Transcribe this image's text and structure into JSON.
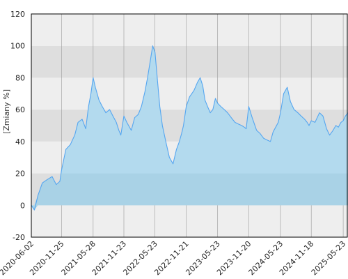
{
  "chart_data": {
    "type": "area",
    "title": "",
    "xlabel": "",
    "ylabel": "[Zmiany %]",
    "ylim": [
      -20,
      120
    ],
    "yticks": [
      -20,
      0,
      20,
      40,
      60,
      80,
      100,
      120
    ],
    "xlim": [
      "2020-06-02",
      "2025-06-20"
    ],
    "xticks": [
      "2020-06-02",
      "2020-11-25",
      "2021-05-28",
      "2021-11-23",
      "2022-05-23",
      "2022-11-21",
      "2023-05-23",
      "2023-11-20",
      "2024-05-23",
      "2024-11-18",
      "2025-05-23"
    ],
    "grid": true,
    "legend": "none",
    "colors": {
      "line": "#55a6f0",
      "fill_positive": "#b3daee",
      "fill_zero_band": "#a9d2e6",
      "band_light": "#eeeeee",
      "band_dark": "#dedede",
      "frame": "#000000",
      "gridline": "#9a9a9a"
    },
    "series": [
      {
        "x": [
          "2020-06-02",
          "2020-06-20",
          "2020-07-10",
          "2020-08-05",
          "2020-09-01",
          "2020-10-01",
          "2020-10-25",
          "2020-11-15",
          "2020-11-25",
          "2020-12-20",
          "2021-01-15",
          "2021-02-10",
          "2021-03-01",
          "2021-03-25",
          "2021-04-15",
          "2021-05-01",
          "2021-05-15",
          "2021-05-28",
          "2021-06-10",
          "2021-07-01",
          "2021-07-20",
          "2021-08-10",
          "2021-09-01",
          "2021-09-20",
          "2021-10-10",
          "2021-10-25",
          "2021-11-05",
          "2021-11-23",
          "2021-12-10",
          "2022-01-05",
          "2022-01-25",
          "2022-02-15",
          "2022-03-05",
          "2022-03-25",
          "2022-04-10",
          "2022-04-25",
          "2022-05-10",
          "2022-05-23",
          "2022-06-05",
          "2022-06-20",
          "2022-07-05",
          "2022-07-25",
          "2022-08-15",
          "2022-09-05",
          "2022-09-25",
          "2022-10-12",
          "2022-10-25",
          "2022-11-05",
          "2022-11-21",
          "2022-12-10",
          "2023-01-05",
          "2023-01-25",
          "2023-02-10",
          "2023-02-25",
          "2023-03-10",
          "2023-03-25",
          "2023-04-10",
          "2023-04-25",
          "2023-05-10",
          "2023-05-23",
          "2023-06-10",
          "2023-07-01",
          "2023-07-20",
          "2023-08-10",
          "2023-09-01",
          "2023-09-20",
          "2023-10-10",
          "2023-10-25",
          "2023-11-05",
          "2023-11-20",
          "2023-12-10",
          "2024-01-05",
          "2024-01-25",
          "2024-02-15",
          "2024-03-05",
          "2024-03-25",
          "2024-04-10",
          "2024-04-25",
          "2024-05-10",
          "2024-05-23",
          "2024-06-10",
          "2024-07-01",
          "2024-07-20",
          "2024-08-10",
          "2024-09-01",
          "2024-09-20",
          "2024-10-10",
          "2024-10-25",
          "2024-11-05",
          "2024-11-18",
          "2024-12-10",
          "2025-01-05",
          "2025-01-25",
          "2025-02-15",
          "2025-03-05",
          "2025-03-25",
          "2025-04-10",
          "2025-04-25",
          "2025-05-10",
          "2025-05-23",
          "2025-06-05",
          "2025-06-20"
        ],
        "values": [
          0,
          -3,
          6,
          14,
          16,
          18,
          13,
          15,
          22,
          35,
          38,
          44,
          52,
          54,
          48,
          62,
          70,
          80,
          74,
          66,
          62,
          58,
          60,
          56,
          52,
          47,
          44,
          56,
          52,
          47,
          55,
          57,
          62,
          71,
          80,
          90,
          100,
          96,
          80,
          62,
          50,
          40,
          30,
          26,
          35,
          40,
          45,
          50,
          62,
          68,
          72,
          77,
          80,
          75,
          66,
          62,
          58,
          60,
          67,
          64,
          62,
          60,
          58,
          55,
          52,
          51,
          50,
          49,
          48,
          62,
          55,
          47,
          45,
          42,
          41,
          40,
          46,
          49,
          52,
          58,
          70,
          74,
          65,
          60,
          58,
          56,
          54,
          52,
          50,
          53,
          52,
          58,
          56,
          48,
          44,
          47,
          50,
          49,
          52,
          53,
          56,
          58
        ]
      }
    ]
  }
}
